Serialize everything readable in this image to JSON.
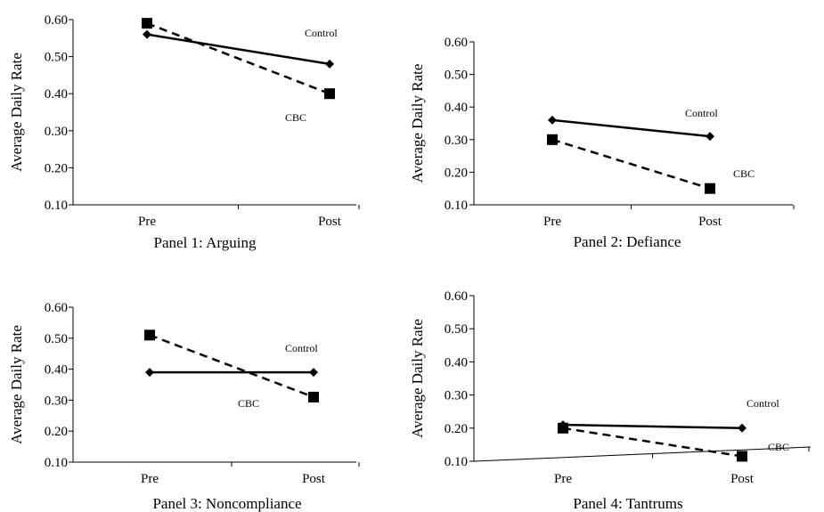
{
  "chart_data": [
    {
      "type": "line",
      "caption": "Panel 1: Arguing",
      "ylabel": "Average Daily Rate",
      "categories": [
        "Pre",
        "Post"
      ],
      "yticks": [
        "0.10",
        "0.20",
        "0.30",
        "0.40",
        "0.50",
        "0.60"
      ],
      "ylim": [
        0.1,
        0.6
      ],
      "series": [
        {
          "name": "Control",
          "values": [
            0.56,
            0.48
          ],
          "marker": "diamond",
          "dash": "solid",
          "color": "#000000"
        },
        {
          "name": "CBC",
          "values": [
            0.59,
            0.4
          ],
          "marker": "square",
          "dash": "dashed",
          "color": "#000000"
        }
      ]
    },
    {
      "type": "line",
      "caption": "Panel 2:  Defiance",
      "ylabel": "Average Daily Rate",
      "categories": [
        "Pre",
        "Post"
      ],
      "yticks": [
        "0.10",
        "0.20",
        "0.30",
        "0.40",
        "0.50",
        "0.60"
      ],
      "ylim": [
        0.1,
        0.6
      ],
      "series": [
        {
          "name": "Control",
          "values": [
            0.36,
            0.31
          ],
          "marker": "diamond",
          "dash": "solid",
          "color": "#000000"
        },
        {
          "name": "CBC",
          "values": [
            0.3,
            0.15
          ],
          "marker": "square",
          "dash": "dashed",
          "color": "#000000"
        }
      ]
    },
    {
      "type": "line",
      "caption": "Panel 3:  Noncompliance",
      "ylabel": "Average Daily Rate",
      "categories": [
        "Pre",
        "Post"
      ],
      "yticks": [
        "0.10",
        "0.20",
        "0.30",
        "0.40",
        "0.50",
        "0.60"
      ],
      "ylim": [
        0.1,
        0.6
      ],
      "series": [
        {
          "name": "Control",
          "values": [
            0.39,
            0.39
          ],
          "marker": "diamond",
          "dash": "solid",
          "color": "#000000"
        },
        {
          "name": "CBC",
          "values": [
            0.51,
            0.31
          ],
          "marker": "square",
          "dash": "dashed",
          "color": "#000000"
        }
      ]
    },
    {
      "type": "line",
      "caption": "Panel 4: Tantrums",
      "ylabel": "Average Daily Rate",
      "categories": [
        "Pre",
        "Post"
      ],
      "yticks": [
        "0.10",
        "0.20",
        "0.30",
        "0.40",
        "0.50",
        "0.60"
      ],
      "ylim": [
        0.1,
        0.6
      ],
      "series": [
        {
          "name": "Control",
          "values": [
            0.21,
            0.2
          ],
          "marker": "diamond",
          "dash": "solid",
          "color": "#000000"
        },
        {
          "name": "CBC",
          "values": [
            0.2,
            0.115
          ],
          "marker": "square",
          "dash": "dashed",
          "color": "#000000"
        }
      ]
    }
  ]
}
